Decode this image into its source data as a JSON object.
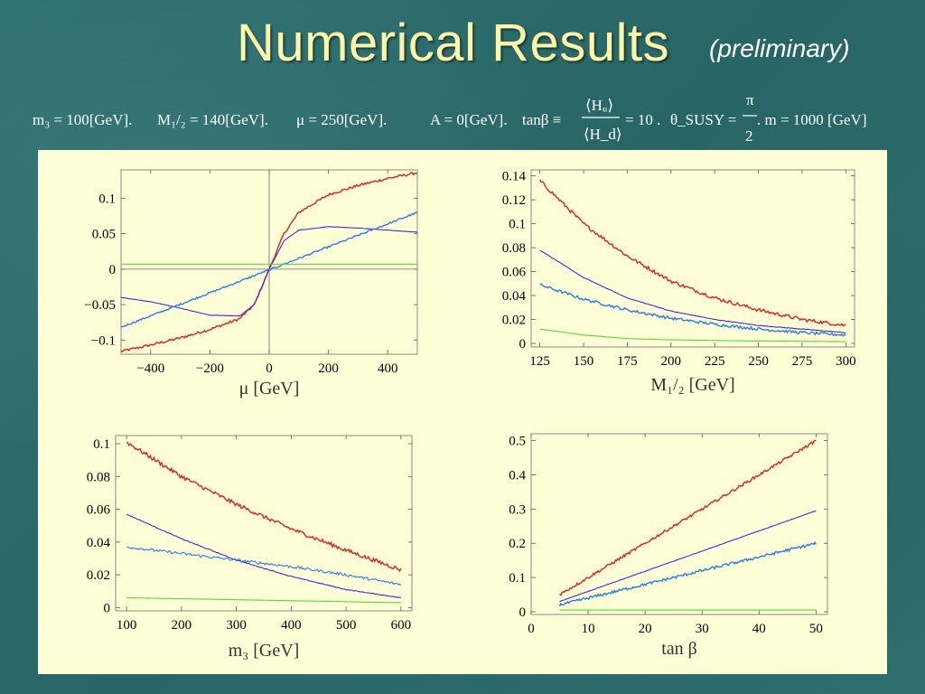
{
  "slide": {
    "title": "Numerical Results",
    "subtitle": "(preliminary)",
    "params": {
      "m3": "m₃ = 100[GeV].",
      "M12": "M₁/₂ = 140[GeV].",
      "mu": "μ = 250[GeV].",
      "A": "A = 0[GeV].",
      "tanb_lhs": "tanβ ≡",
      "frac_num": "⟨Hᵤ⟩",
      "frac_den": "⟨H_d⟩",
      "tanb_rhs": "= 10 .",
      "theta_lhs": "θ_SUSY =",
      "pi_num": "π",
      "pi_den": "2",
      "m": ". m = 1000 [GeV]"
    }
  },
  "colors": {
    "title": "#fdf6a8",
    "panel": "#ffffd7",
    "red": "#e0201a",
    "purple": "#4a22d8",
    "blue": "#2a7de0",
    "green": "#5ad63a"
  },
  "chart_data": [
    {
      "type": "line",
      "xlabel": "μ [GeV]",
      "ylabel": "",
      "xlim": [
        -500,
        500
      ],
      "ylim": [
        -0.12,
        0.14
      ],
      "xticks": [
        -400,
        -200,
        0,
        200,
        400
      ],
      "xtick_labels": [
        "−400",
        "−200",
        "0",
        "200",
        "400"
      ],
      "yticks": [
        -0.1,
        -0.05,
        0,
        0.05,
        0.1
      ],
      "ytick_labels": [
        "−0.1",
        "−0.05",
        "0",
        "0.05",
        "0.1"
      ],
      "series": [
        {
          "color": "red",
          "noise": 0.0018,
          "x": [
            -500,
            -400,
            -300,
            -200,
            -100,
            -50,
            0,
            50,
            100,
            200,
            300,
            400,
            500
          ],
          "y": [
            -0.116,
            -0.107,
            -0.097,
            -0.085,
            -0.07,
            -0.05,
            0.0,
            0.05,
            0.08,
            0.105,
            0.118,
            0.128,
            0.136
          ]
        },
        {
          "color": "purple",
          "noise": 0.0002,
          "x": [
            -500,
            -400,
            -300,
            -200,
            -100,
            -50,
            0,
            50,
            100,
            200,
            300,
            400,
            500
          ],
          "y": [
            -0.04,
            -0.046,
            -0.055,
            -0.065,
            -0.066,
            -0.05,
            0.0,
            0.04,
            0.055,
            0.06,
            0.058,
            0.055,
            0.052
          ]
        },
        {
          "color": "blue",
          "noise": 0.0012,
          "x": [
            -500,
            500
          ],
          "y": [
            -0.082,
            0.08
          ]
        },
        {
          "color": "green",
          "noise": 0.0,
          "x": [
            -500,
            500
          ],
          "y": [
            0.007,
            0.007
          ]
        }
      ]
    },
    {
      "type": "line",
      "xlabel": "M₁/₂ [GeV]",
      "ylabel": "",
      "xlim": [
        120,
        305
      ],
      "ylim": [
        -0.003,
        0.145
      ],
      "xticks": [
        125,
        150,
        175,
        200,
        225,
        250,
        275,
        300
      ],
      "xtick_labels": [
        "125",
        "150",
        "175",
        "200",
        "225",
        "250",
        "275",
        "300"
      ],
      "yticks": [
        0,
        0.02,
        0.04,
        0.06,
        0.08,
        0.1,
        0.12,
        0.14
      ],
      "ytick_labels": [
        "0",
        "0.02",
        "0.04",
        "0.06",
        "0.08",
        "0.1",
        "0.12",
        "0.14"
      ],
      "series": [
        {
          "color": "red",
          "noise": 0.0015,
          "x": [
            125,
            150,
            175,
            200,
            225,
            250,
            275,
            300
          ],
          "y": [
            0.136,
            0.1,
            0.073,
            0.052,
            0.038,
            0.028,
            0.02,
            0.015
          ]
        },
        {
          "color": "purple",
          "noise": 0.0002,
          "x": [
            125,
            150,
            175,
            200,
            225,
            250,
            275,
            300
          ],
          "y": [
            0.078,
            0.055,
            0.038,
            0.027,
            0.02,
            0.015,
            0.012,
            0.009
          ]
        },
        {
          "color": "blue",
          "noise": 0.0012,
          "x": [
            125,
            150,
            175,
            200,
            225,
            250,
            275,
            300
          ],
          "y": [
            0.049,
            0.037,
            0.028,
            0.021,
            0.016,
            0.012,
            0.009,
            0.007
          ]
        },
        {
          "color": "green",
          "noise": 0.0,
          "x": [
            125,
            150,
            175,
            200,
            250,
            300
          ],
          "y": [
            0.012,
            0.007,
            0.004,
            0.003,
            0.002,
            0.0015
          ]
        }
      ]
    },
    {
      "type": "line",
      "xlabel": "m₃ [GeV]",
      "ylabel": "",
      "xlim": [
        80,
        620
      ],
      "ylim": [
        -0.002,
        0.105
      ],
      "xticks": [
        100,
        200,
        300,
        400,
        500,
        600
      ],
      "xtick_labels": [
        "100",
        "200",
        "300",
        "400",
        "500",
        "600"
      ],
      "yticks": [
        0,
        0.02,
        0.04,
        0.06,
        0.08,
        0.1
      ],
      "ytick_labels": [
        "0",
        "0.02",
        "0.04",
        "0.06",
        "0.08",
        "0.1"
      ],
      "series": [
        {
          "color": "red",
          "noise": 0.0012,
          "x": [
            100,
            200,
            300,
            400,
            500,
            600
          ],
          "y": [
            0.101,
            0.08,
            0.063,
            0.048,
            0.035,
            0.023
          ]
        },
        {
          "color": "purple",
          "noise": 0.0002,
          "x": [
            100,
            200,
            300,
            400,
            500,
            600
          ],
          "y": [
            0.057,
            0.042,
            0.029,
            0.019,
            0.011,
            0.006
          ]
        },
        {
          "color": "blue",
          "noise": 0.0008,
          "x": [
            100,
            200,
            300,
            400,
            500,
            600
          ],
          "y": [
            0.037,
            0.033,
            0.029,
            0.025,
            0.02,
            0.014
          ]
        },
        {
          "color": "green",
          "noise": 0.0,
          "x": [
            100,
            600
          ],
          "y": [
            0.006,
            0.003
          ]
        }
      ]
    },
    {
      "type": "line",
      "xlabel": "tan β",
      "ylabel": "",
      "xlim": [
        0,
        52
      ],
      "ylim": [
        -0.008,
        0.52
      ],
      "xticks": [
        0,
        10,
        20,
        30,
        40,
        50
      ],
      "xtick_labels": [
        "0",
        "10",
        "20",
        "30",
        "40",
        "50"
      ],
      "yticks": [
        0,
        0.1,
        0.2,
        0.3,
        0.4,
        0.5
      ],
      "ytick_labels": [
        "0",
        "0.1",
        "0.2",
        "0.3",
        "0.4",
        "0.5"
      ],
      "series": [
        {
          "color": "red",
          "noise": 0.004,
          "x": [
            5,
            50
          ],
          "y": [
            0.05,
            0.5
          ]
        },
        {
          "color": "purple",
          "noise": 0.0005,
          "x": [
            5,
            50
          ],
          "y": [
            0.03,
            0.295
          ]
        },
        {
          "color": "blue",
          "noise": 0.004,
          "x": [
            5,
            50
          ],
          "y": [
            0.02,
            0.2
          ]
        },
        {
          "color": "green",
          "noise": 0.0,
          "x": [
            5,
            50
          ],
          "y": [
            0.005,
            0.005
          ]
        }
      ]
    }
  ]
}
